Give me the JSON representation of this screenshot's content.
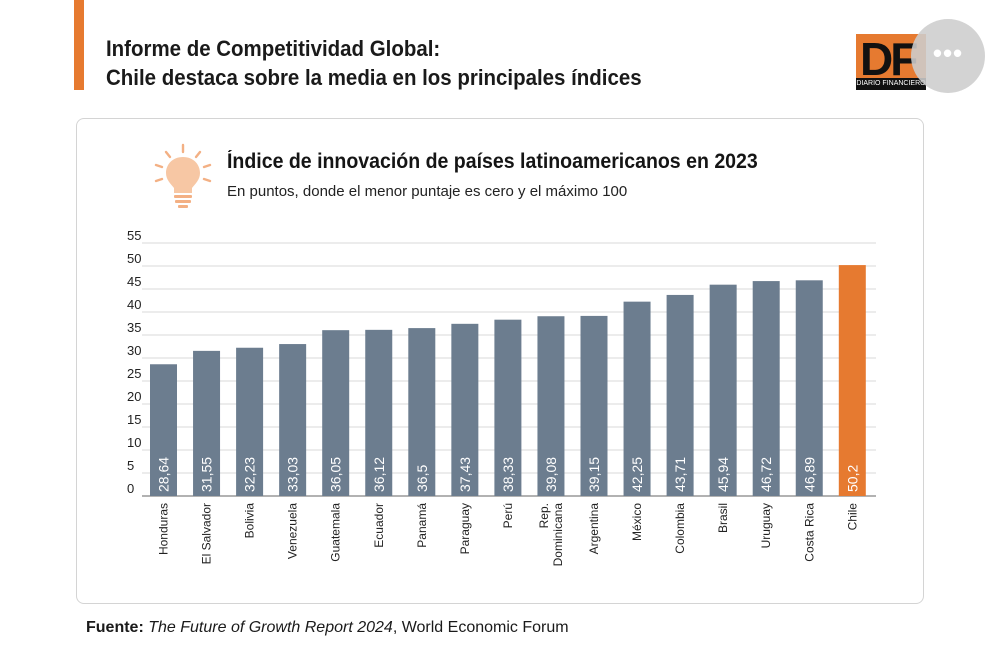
{
  "header": {
    "title_line1": "Informe de Competitividad Global:",
    "title_line2": "Chile destaca sobre la media en los principales índices"
  },
  "logo": {
    "text": "DF",
    "tagline": "DIARIO FINANCIERO"
  },
  "more_button": {
    "label": "•••",
    "icon": "more-horizontal-icon"
  },
  "chart_icon": "lightbulb-icon",
  "colors": {
    "accent": "#e67a30",
    "bar": "#6c7d8f",
    "highlight": "#e67a30",
    "grid": "#d9d9d9"
  },
  "chart_data": {
    "type": "bar",
    "title": "Índice de innovación de países latinoamericanos en 2023",
    "subtitle": "En puntos, donde el menor puntaje es cero y el máximo 100",
    "xlabel": "",
    "ylabel": "",
    "ylim": [
      0,
      55
    ],
    "yticks": [
      0,
      5,
      10,
      15,
      20,
      25,
      30,
      35,
      40,
      45,
      50,
      55
    ],
    "grid": true,
    "highlight": "Chile",
    "categories": [
      [
        "Honduras"
      ],
      [
        "El Salvador"
      ],
      [
        "Bolivia"
      ],
      [
        "Venezuela"
      ],
      [
        "Guatemala"
      ],
      [
        "Ecuador"
      ],
      [
        "Panamá"
      ],
      [
        "Paraguay"
      ],
      [
        "Perú"
      ],
      [
        "Rep.",
        "Dominicana"
      ],
      [
        "Argentina"
      ],
      [
        "México"
      ],
      [
        "Colombia"
      ],
      [
        "Brasil"
      ],
      [
        "Uruguay"
      ],
      [
        "Costa Rica"
      ],
      [
        "Chile"
      ]
    ],
    "values": [
      28.64,
      31.55,
      32.23,
      33.03,
      36.05,
      36.12,
      36.5,
      37.43,
      38.33,
      39.08,
      39.15,
      42.25,
      43.71,
      45.94,
      46.72,
      46.89,
      50.2
    ],
    "value_labels": [
      "28,64",
      "31,55",
      "32,23",
      "33,03",
      "36,05",
      "36,12",
      "36,5",
      "37,43",
      "38,33",
      "39,08",
      "39,15",
      "42,25",
      "43,71",
      "45,94",
      "46,72",
      "46,89",
      "50,2"
    ]
  },
  "source": {
    "label": "Fuente:",
    "report": "The Future of Growth Report 2024",
    "org": ", World Economic Forum"
  }
}
